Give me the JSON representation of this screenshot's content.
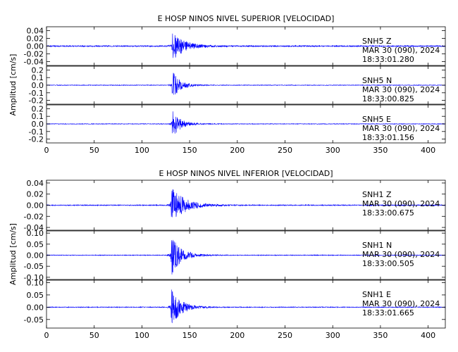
{
  "colors": {
    "trace": "#0000ff",
    "axis": "#000000",
    "background": "#ffffff"
  },
  "chart_data": [
    {
      "type": "line",
      "title": "E HOSP NINOS NIVEL SUPERIOR [VELOCIDAD]",
      "ylabel": "Amplitud [cm/s]",
      "xlim": [
        0,
        418
      ],
      "xticks": [
        0,
        50,
        100,
        150,
        200,
        250,
        300,
        350,
        400
      ],
      "xtick_labels": [
        "0",
        "50",
        "100",
        "150",
        "200",
        "250",
        "300",
        "350",
        "400"
      ],
      "panels": [
        {
          "station": "SNH5",
          "component": "Z",
          "date": "MAR 30 (090), 2024",
          "time": "18:33:01.280",
          "ylim": [
            -0.05,
            0.05
          ],
          "yticks": [
            0.04,
            0.02,
            0.0,
            -0.02,
            -0.04
          ],
          "ytick_labels": [
            "0.04",
            "0.02",
            "0.00",
            "-0.02",
            "-0.04"
          ],
          "arrival_s": 131,
          "peak_amp": 0.04,
          "noise_amp": 0.0015,
          "decay_s": 12
        },
        {
          "station": "SNH5",
          "component": "N",
          "date": "MAR 30 (090), 2024",
          "time": "18:33:00.825",
          "ylim": [
            -0.25,
            0.25
          ],
          "yticks": [
            0.2,
            0.1,
            0.0,
            -0.1,
            -0.2
          ],
          "ytick_labels": [
            "0.2",
            "0.1",
            "0.0",
            "-0.1",
            "-0.2"
          ],
          "arrival_s": 131,
          "peak_amp": 0.22,
          "noise_amp": 0.004,
          "decay_s": 8
        },
        {
          "station": "SNH5",
          "component": "E",
          "date": "MAR 30 (090), 2024",
          "time": "18:33:01.156",
          "ylim": [
            -0.25,
            0.25
          ],
          "yticks": [
            0.2,
            0.1,
            0.0,
            -0.1,
            -0.2
          ],
          "ytick_labels": [
            "0.2",
            "0.1",
            "0.0",
            "-0.1",
            "-0.2"
          ],
          "arrival_s": 131,
          "peak_amp": 0.22,
          "noise_amp": 0.004,
          "decay_s": 8
        }
      ]
    },
    {
      "type": "line",
      "title": "E HOSP NINOS NIVEL INFERIOR [VELOCIDAD]",
      "ylabel": "Amplitud [cm/s]",
      "xlim": [
        0,
        418
      ],
      "xticks": [
        0,
        50,
        100,
        150,
        200,
        250,
        300,
        350,
        400
      ],
      "xtick_labels": [
        "0",
        "50",
        "100",
        "150",
        "200",
        "250",
        "300",
        "350",
        "400"
      ],
      "panels": [
        {
          "station": "SNH1",
          "component": "Z",
          "date": "MAR 30 (090), 2024",
          "time": "18:33:00.675",
          "ylim": [
            -0.045,
            0.045
          ],
          "yticks": [
            0.04,
            0.02,
            0.0,
            -0.02,
            -0.04
          ],
          "ytick_labels": [
            "0.04",
            "0.02",
            "0.00",
            "-0.02",
            "-0.04"
          ],
          "arrival_s": 130,
          "peak_amp": 0.035,
          "noise_amp": 0.0008,
          "decay_s": 14
        },
        {
          "station": "SNH1",
          "component": "N",
          "date": "MAR 30 (090), 2024",
          "time": "18:33:00.505",
          "ylim": [
            -0.11,
            0.11
          ],
          "yticks": [
            0.1,
            0.05,
            0.0,
            -0.05,
            -0.1
          ],
          "ytick_labels": [
            "0.10",
            "0.05",
            "0.00",
            "-0.05",
            "-0.10"
          ],
          "arrival_s": 130,
          "peak_amp": 0.1,
          "noise_amp": 0.0015,
          "decay_s": 10
        },
        {
          "station": "SNH1",
          "component": "E",
          "date": "MAR 30 (090), 2024",
          "time": "18:33:01.665",
          "ylim": [
            -0.085,
            0.11
          ],
          "yticks": [
            0.1,
            0.05,
            0.0,
            -0.05
          ],
          "ytick_labels": [
            "0.10",
            "0.05",
            "0.00",
            "-0.05"
          ],
          "arrival_s": 130,
          "peak_amp": 0.085,
          "noise_amp": 0.0015,
          "decay_s": 10
        }
      ]
    }
  ]
}
